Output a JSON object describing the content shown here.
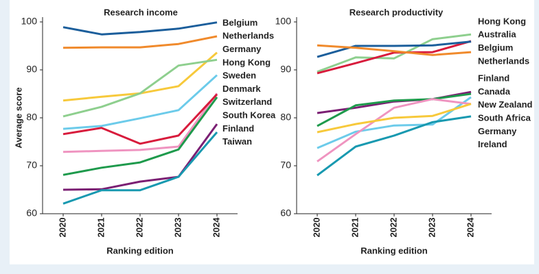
{
  "chart_data": [
    {
      "type": "line",
      "title": "Research income",
      "y_label": "Average score",
      "x_label": "Ranking edition",
      "categories": [
        "2020",
        "2021",
        "2022",
        "2023",
        "2024"
      ],
      "ylim": [
        60,
        100
      ],
      "yticks": [
        60,
        70,
        80,
        90,
        100
      ],
      "series": [
        {
          "name": "Belgium",
          "color": "#1b5e9b",
          "values": [
            98.9,
            97.4,
            97.9,
            98.6,
            99.9
          ]
        },
        {
          "name": "Netherlands",
          "color": "#f08a2c",
          "values": [
            94.6,
            94.7,
            94.7,
            95.4,
            97.0
          ]
        },
        {
          "name": "Germany",
          "color": "#f7c93b",
          "values": [
            83.6,
            84.4,
            85.1,
            86.6,
            93.6
          ]
        },
        {
          "name": "Hong Kong",
          "color": "#8ecf8e",
          "values": [
            80.3,
            82.3,
            85.1,
            90.9,
            92.1
          ]
        },
        {
          "name": "Sweden",
          "color": "#6ccbea",
          "values": [
            77.7,
            78.3,
            79.9,
            81.6,
            88.9
          ]
        },
        {
          "name": "Denmark",
          "color": "#ef94c0",
          "values": [
            72.9,
            73.1,
            73.3,
            74.0,
            85.1
          ]
        },
        {
          "name": "Switzerland",
          "color": "#d81b3c",
          "values": [
            76.6,
            77.9,
            74.6,
            76.3,
            84.9
          ]
        },
        {
          "name": "South Korea",
          "color": "#1e9a4c",
          "values": [
            68.1,
            69.6,
            70.7,
            73.4,
            84.3
          ]
        },
        {
          "name": "Finland",
          "color": "#7b1f73",
          "values": [
            65.0,
            65.1,
            66.7,
            67.7,
            78.7
          ]
        },
        {
          "name": "Taiwan",
          "color": "#1899b0",
          "values": [
            62.1,
            64.9,
            64.9,
            67.7,
            77.0
          ]
        }
      ]
    },
    {
      "type": "line",
      "title": "Research productivity",
      "x_label": "Ranking edition",
      "categories": [
        "2020",
        "2021",
        "2022",
        "2023",
        "2024"
      ],
      "ylim": [
        60,
        100
      ],
      "yticks": [
        60,
        70,
        80,
        90,
        100
      ],
      "series": [
        {
          "name": "Hong Kong",
          "color": "#8ecf8e",
          "values": [
            89.6,
            92.6,
            92.4,
            96.4,
            97.4
          ]
        },
        {
          "name": "Australia",
          "color": "#d81b3c",
          "values": [
            89.3,
            91.4,
            93.6,
            93.7,
            96.0
          ]
        },
        {
          "name": "Belgium",
          "color": "#1b5e9b",
          "values": [
            92.7,
            95.0,
            95.0,
            95.1,
            95.9
          ]
        },
        {
          "name": "Netherlands",
          "color": "#f08a2c",
          "values": [
            95.1,
            94.6,
            93.9,
            93.1,
            93.7
          ]
        },
        {
          "name": "Finland",
          "color": "#7b1f73",
          "values": [
            81.0,
            82.1,
            83.4,
            83.9,
            85.4
          ]
        },
        {
          "name": "Canada",
          "color": "#1e9a4c",
          "values": [
            78.3,
            82.6,
            83.6,
            83.9,
            85.0
          ]
        },
        {
          "name": "New Zealand",
          "color": "#6ccbea",
          "values": [
            73.7,
            77.1,
            78.4,
            78.6,
            84.3
          ]
        },
        {
          "name": "South Africa",
          "color": "#ef94c0",
          "values": [
            70.9,
            76.6,
            82.1,
            83.9,
            82.9
          ]
        },
        {
          "name": "Germany",
          "color": "#f7c93b",
          "values": [
            77.0,
            78.7,
            80.0,
            80.4,
            82.9
          ]
        },
        {
          "name": "Ireland",
          "color": "#1899b0",
          "values": [
            68.0,
            74.0,
            76.3,
            79.1,
            80.3
          ]
        }
      ]
    }
  ]
}
